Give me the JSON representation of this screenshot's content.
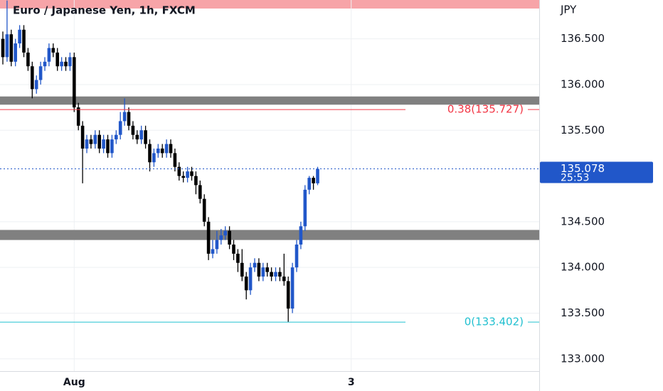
{
  "chart_data": {
    "type": "candlestick",
    "title": "Euro / Japanese Yen, 1h, FXCM",
    "y_axis_label": "JPY",
    "up_color": "#2157c9",
    "down_color": "#000000",
    "xlim": [
      -0.68,
      127.8
    ],
    "xticks": [
      {
        "value": 17,
        "label": "Aug"
      },
      {
        "value": 83,
        "label": "3"
      }
    ],
    "ylim": [
      132.866,
      136.925
    ],
    "yticks": [
      {
        "value": 133,
        "label": "133.000"
      },
      {
        "value": 133.5,
        "label": "133.500"
      },
      {
        "value": 134,
        "label": "134.000"
      },
      {
        "value": 134.5,
        "label": "134.500"
      },
      {
        "value": 135.5,
        "label": "135.500"
      },
      {
        "value": 136,
        "label": "136.000"
      },
      {
        "value": 136.5,
        "label": "136.500"
      }
    ],
    "grid": true,
    "open": [
      136.5,
      136.3,
      136.55,
      136.25,
      136.45,
      136.6,
      136.35,
      136.2,
      135.95,
      136.05,
      136.2,
      136.25,
      136.4,
      136.35,
      136.2,
      136.25,
      136.2,
      136.3,
      135.75,
      135.55,
      135.3,
      135.4,
      135.35,
      135.45,
      135.3,
      135.4,
      135.25,
      135.4,
      135.45,
      135.6,
      135.7,
      135.55,
      135.45,
      135.4,
      135.5,
      135.35,
      135.15,
      135.25,
      135.3,
      135.25,
      135.35,
      135.25,
      135.1,
      135.0,
      134.98,
      135.05,
      135.0,
      134.9,
      134.75,
      134.5,
      134.15,
      134.2,
      134.3,
      134.35,
      134.4,
      134.25,
      134.15,
      134.05,
      133.9,
      133.75,
      134.0,
      134.05,
      133.9,
      134.0,
      133.95,
      133.9,
      133.95,
      133.9,
      133.85,
      133.55,
      134.0,
      134.25,
      134.45,
      134.85,
      134.98,
      134.92
    ],
    "high": [
      136.58,
      136.92,
      136.6,
      136.5,
      136.65,
      136.65,
      136.4,
      136.25,
      136.1,
      136.25,
      136.3,
      136.45,
      136.45,
      136.4,
      136.3,
      136.3,
      136.35,
      136.35,
      135.8,
      135.6,
      135.45,
      135.45,
      135.5,
      135.5,
      135.45,
      135.45,
      135.45,
      135.5,
      135.7,
      135.85,
      135.75,
      135.6,
      135.5,
      135.55,
      135.55,
      135.4,
      135.3,
      135.35,
      135.35,
      135.4,
      135.4,
      135.3,
      135.15,
      135.05,
      135.1,
      135.1,
      135.05,
      134.95,
      134.8,
      134.55,
      134.3,
      134.4,
      134.42,
      134.45,
      134.45,
      134.3,
      134.2,
      134.2,
      133.95,
      134.05,
      134.1,
      134.1,
      134.05,
      134.05,
      134.0,
      134.0,
      134.0,
      134.15,
      133.9,
      134.05,
      134.3,
      134.5,
      134.9,
      135.0,
      135.0,
      135.1
    ],
    "low": [
      136.22,
      136.25,
      136.2,
      136.2,
      136.4,
      136.3,
      136.15,
      135.85,
      135.9,
      136.0,
      136.15,
      136.2,
      136.3,
      136.15,
      136.15,
      136.15,
      136.15,
      135.7,
      135.5,
      134.92,
      135.25,
      135.3,
      135.3,
      135.25,
      135.25,
      135.2,
      135.2,
      135.35,
      135.4,
      135.55,
      135.5,
      135.4,
      135.35,
      135.35,
      135.3,
      135.05,
      135.1,
      135.2,
      135.2,
      135.2,
      135.2,
      135.05,
      134.95,
      134.93,
      134.93,
      134.95,
      134.8,
      134.7,
      134.45,
      134.08,
      134.1,
      134.15,
      134.25,
      134.3,
      134.2,
      134.08,
      133.95,
      133.85,
      133.65,
      133.7,
      133.95,
      133.85,
      133.85,
      133.9,
      133.85,
      133.85,
      133.85,
      133.8,
      133.402,
      133.5,
      133.95,
      134.2,
      134.4,
      134.8,
      134.85,
      134.9
    ],
    "close": [
      136.3,
      136.55,
      136.25,
      136.45,
      136.6,
      136.35,
      136.2,
      135.95,
      136.05,
      136.2,
      136.25,
      136.4,
      136.35,
      136.2,
      136.25,
      136.2,
      136.3,
      135.75,
      135.55,
      135.3,
      135.4,
      135.35,
      135.45,
      135.3,
      135.4,
      135.25,
      135.4,
      135.45,
      135.6,
      135.7,
      135.55,
      135.45,
      135.4,
      135.5,
      135.35,
      135.15,
      135.25,
      135.3,
      135.25,
      135.35,
      135.25,
      135.1,
      135.0,
      134.98,
      135.05,
      135.0,
      134.9,
      134.75,
      134.5,
      134.15,
      134.2,
      134.3,
      134.35,
      134.4,
      134.25,
      134.15,
      134.05,
      133.9,
      133.75,
      134.0,
      134.05,
      133.9,
      134.0,
      133.95,
      133.9,
      133.95,
      133.9,
      133.85,
      133.55,
      134.0,
      134.25,
      134.45,
      134.85,
      134.98,
      134.92,
      135.078
    ],
    "zones": [
      {
        "low": 135.78,
        "high": 135.87,
        "color": "#808080"
      },
      {
        "low": 134.3,
        "high": 134.41,
        "color": "#808080"
      }
    ],
    "fib_levels": [
      {
        "value": 135.727,
        "label": "0.38(135.727)",
        "color": "#f23645"
      },
      {
        "value": 133.402,
        "label": "0(133.402)",
        "color": "#22c0d0"
      }
    ],
    "last_price": 135.078,
    "countdown": "25:53"
  }
}
